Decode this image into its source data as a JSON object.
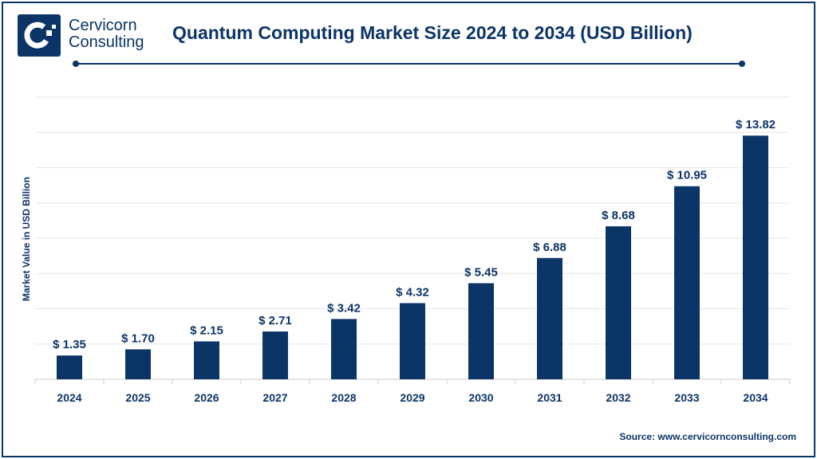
{
  "brand": {
    "line1": "Cervicorn",
    "line2": "Consulting"
  },
  "source": "Source: www.cervicornconsulting.com",
  "colors": {
    "bar": "#0b3467",
    "grid": "#e6e6e6"
  },
  "chart_data": {
    "type": "bar",
    "title": "Quantum Computing Market Size 2024 to 2034 (USD Billion)",
    "xlabel": "",
    "ylabel": "Market Value in USD Billion",
    "categories": [
      "2024",
      "2025",
      "2026",
      "2027",
      "2028",
      "2029",
      "2030",
      "2031",
      "2032",
      "2033",
      "2034"
    ],
    "values": [
      1.35,
      1.7,
      2.15,
      2.71,
      3.42,
      4.32,
      5.45,
      6.88,
      8.68,
      10.95,
      13.82
    ],
    "data_labels": [
      "$ 1.35",
      "$ 1.70",
      "$ 2.15",
      "$ 2.71",
      "$ 3.42",
      "$ 4.32",
      "$ 5.45",
      "$ 6.88",
      "$ 8.68",
      "$ 10.95",
      "$ 13.82"
    ],
    "ylim": [
      0,
      16
    ],
    "grid": true,
    "y_tick_labels_shown": false
  }
}
